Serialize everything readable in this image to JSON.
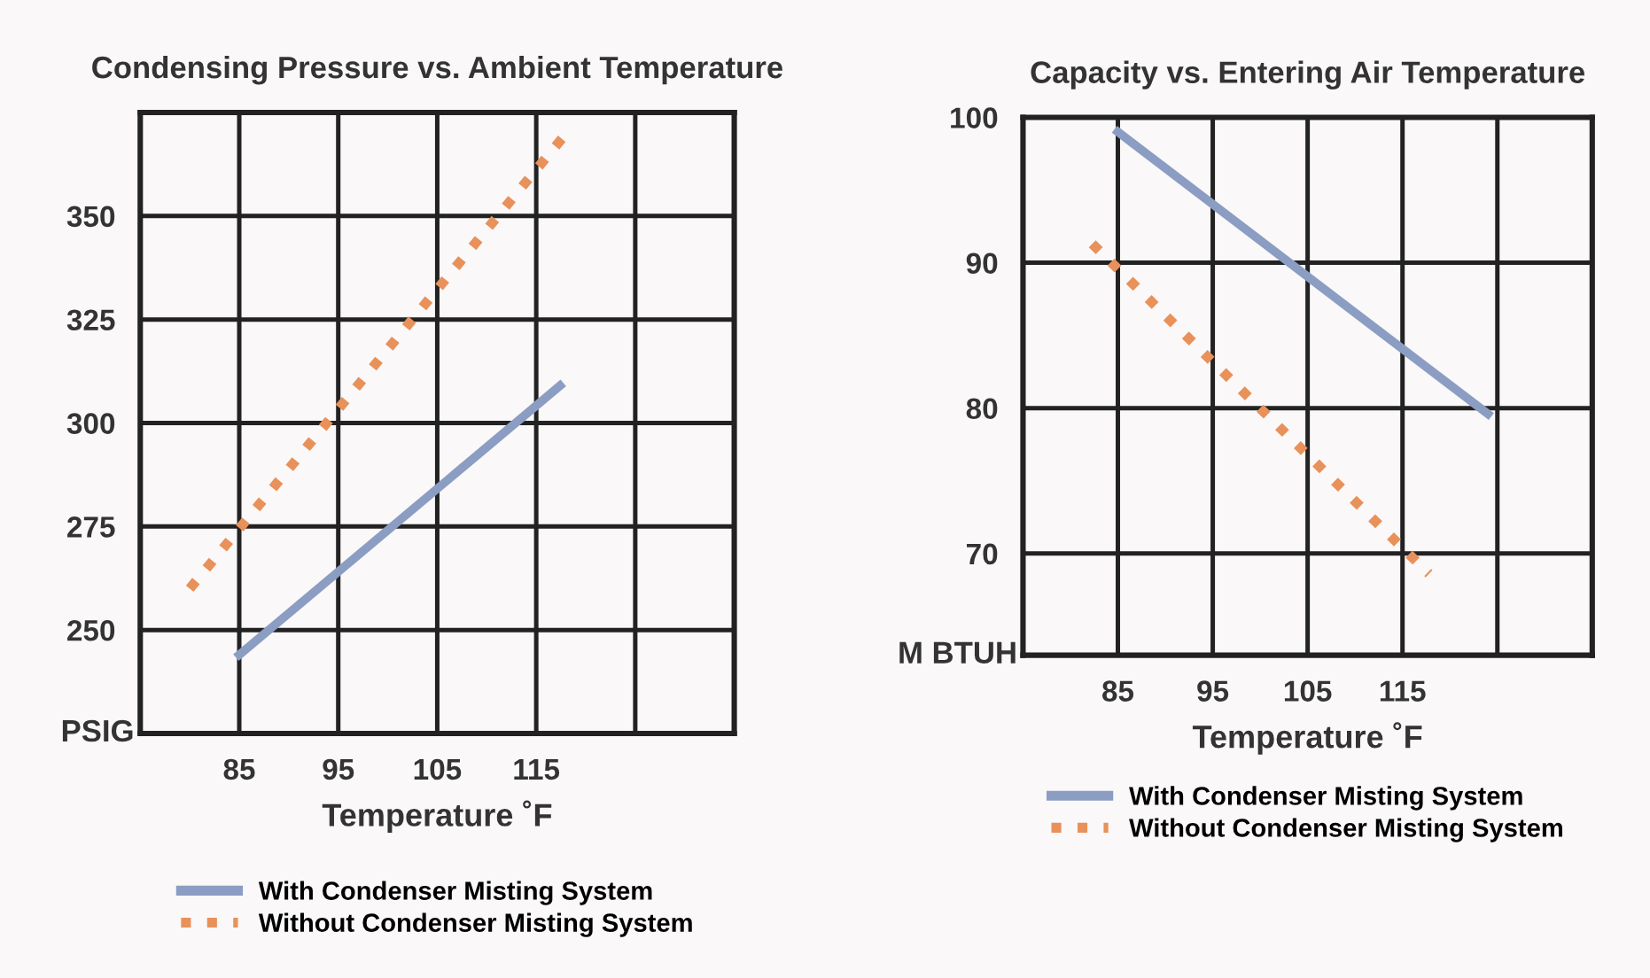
{
  "chart_data": [
    {
      "type": "line",
      "title": "Condensing Pressure vs. Ambient Temperature",
      "xlabel": "Temperature ˚F",
      "ylabel": "PSIG",
      "xlim": [
        75,
        135
      ],
      "xticks": [
        85,
        95,
        105,
        115,
        {
          "value": 125,
          "label": null
        }
      ],
      "ylim": [
        225,
        375
      ],
      "yticks": [
        250,
        275,
        300,
        325,
        350
      ],
      "grid": true,
      "legend": "bottom",
      "series": [
        {
          "name": "With Condenser Misting System",
          "color": "#8b9dc3",
          "line_style": "solid",
          "x": [
            85,
            117.4
          ],
          "values": [
            244,
            309
          ]
        },
        {
          "name": "Without Condenser Misting System",
          "color": "#e8915a",
          "line_style": "dotted",
          "x": [
            80,
            117.7
          ],
          "values": [
            260,
            369
          ]
        }
      ]
    },
    {
      "type": "line",
      "title": "Capacity vs. Entering Air Temperature",
      "xlabel": "Temperature ˚F",
      "ylabel": "M BTUH",
      "xlim": [
        75,
        135
      ],
      "xticks": [
        85,
        95,
        105,
        115,
        {
          "value": 125,
          "label": null
        }
      ],
      "ylim": [
        63,
        100
      ],
      "yticks": [
        70,
        80,
        90,
        100
      ],
      "grid": true,
      "legend": "bottom",
      "series": [
        {
          "name": "With Condenser Misting System",
          "color": "#8b9dc3",
          "line_style": "solid",
          "x": [
            85,
            124
          ],
          "values": [
            99,
            79.6
          ]
        },
        {
          "name": "Without Condenser Misting System",
          "color": "#e8915a",
          "line_style": "dotted",
          "x": [
            82.3,
            117.8
          ],
          "values": [
            91.3,
            68.6
          ]
        }
      ]
    }
  ]
}
